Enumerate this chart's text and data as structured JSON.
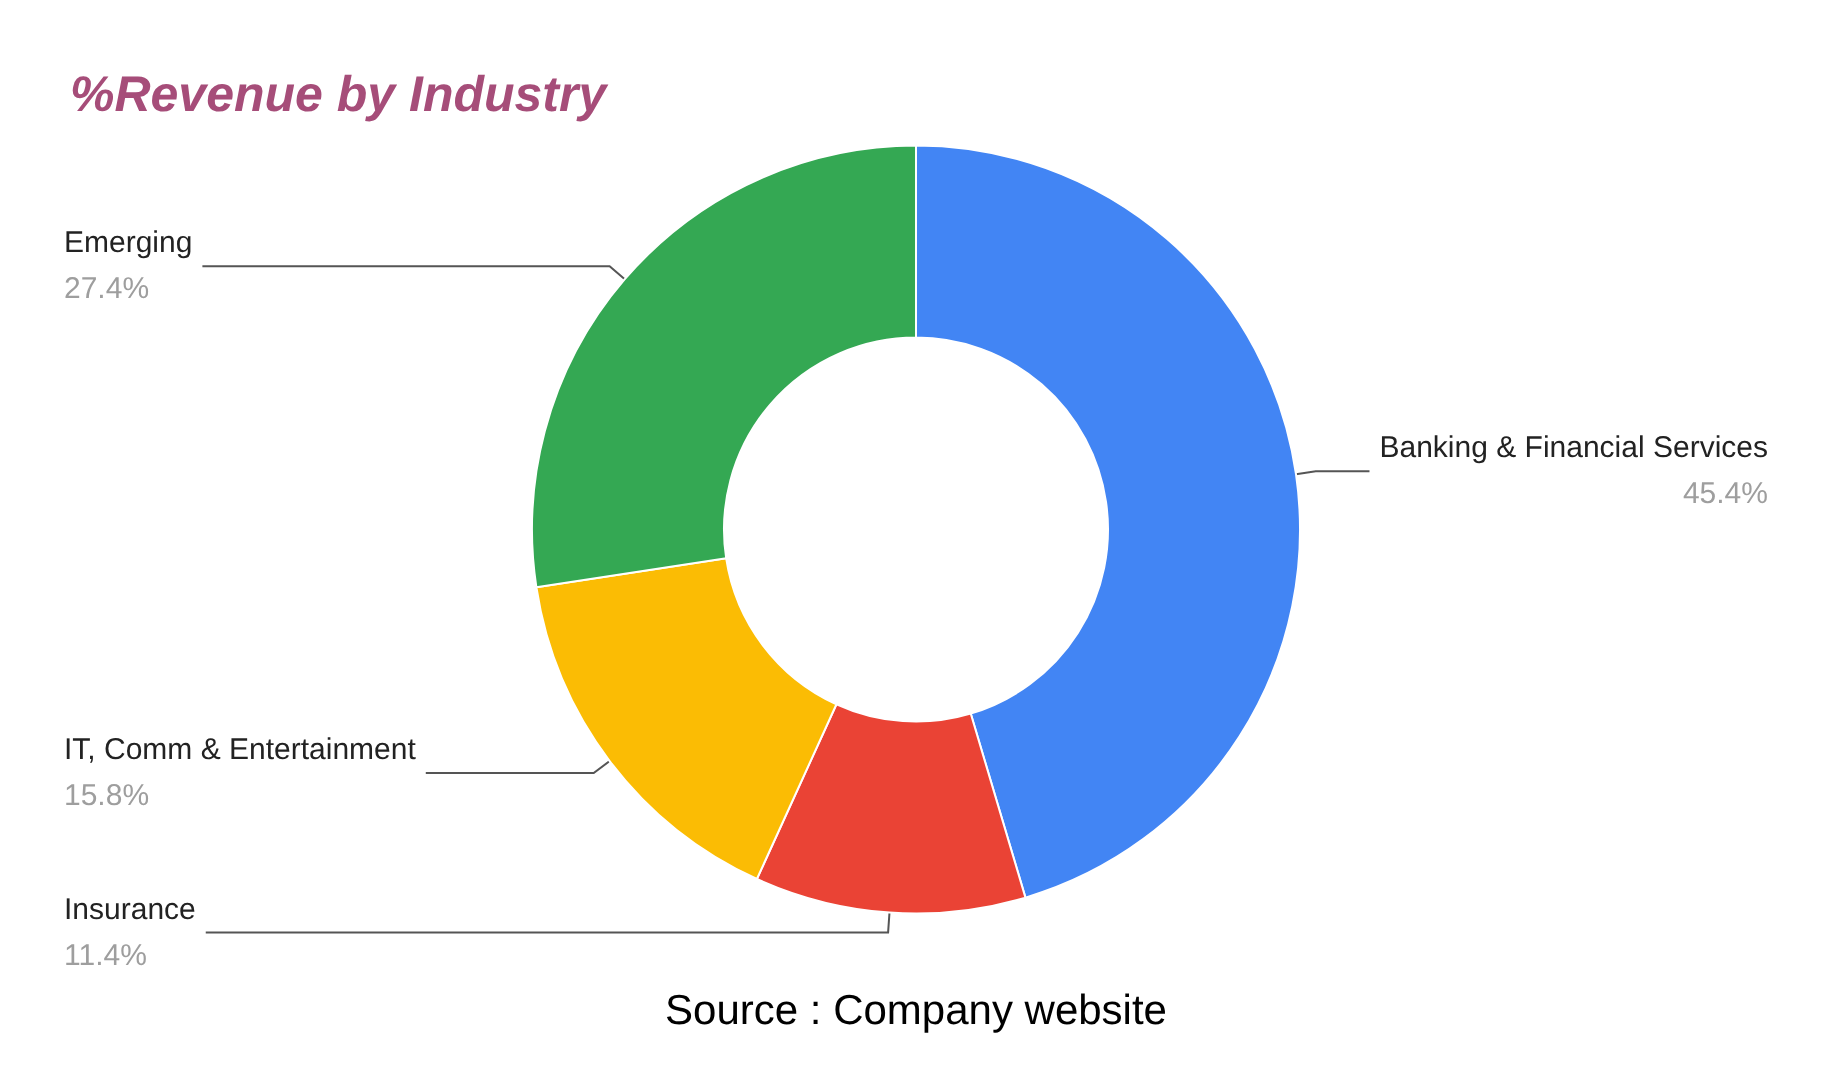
{
  "chart_data": {
    "type": "donut",
    "title": "%Revenue by Industry",
    "categories": [
      "Banking & Financial Services",
      "Insurance",
      "IT, Comm & Entertainment",
      "Emerging"
    ],
    "values": [
      45.4,
      11.4,
      15.8,
      27.4
    ],
    "value_labels": [
      "45.4%",
      "11.4%",
      "15.8%",
      "27.4%"
    ],
    "colors": [
      "#4285f4",
      "#ea4335",
      "#fbbc04",
      "#34a853"
    ],
    "annotations": [
      "Source : Company website"
    ]
  }
}
